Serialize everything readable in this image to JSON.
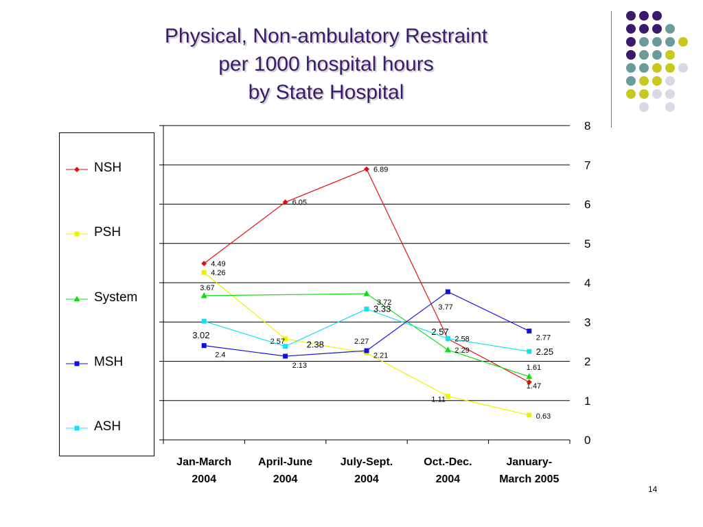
{
  "title_lines": [
    "Physical, Non-ambulatory Restraint",
    "per 1000 hospital hours",
    "by State Hospital"
  ],
  "page_number": "14",
  "colors": {
    "title": "#3b1a6b",
    "dot_purple": "#3b1a6b",
    "dot_teal": "#6b9c9c",
    "dot_yellow": "#c8c820",
    "dot_lavender": "#d8d8e8"
  },
  "decor_dots": [
    [
      "purple",
      "purple",
      "purple",
      null,
      null
    ],
    [
      "purple",
      "purple",
      "purple",
      "teal",
      null
    ],
    [
      "purple",
      "teal",
      "teal",
      "teal",
      "yellow"
    ],
    [
      "purple",
      "teal",
      "teal",
      "yellow",
      null
    ],
    [
      "teal",
      "teal",
      "yellow",
      "yellow",
      "lavender"
    ],
    [
      "teal",
      "yellow",
      "yellow",
      "lavender",
      null
    ],
    [
      "yellow",
      "yellow",
      "lavender",
      "lavender",
      null
    ],
    [
      null,
      "lavender",
      null,
      "lavender",
      null
    ]
  ],
  "chart_data": {
    "type": "line",
    "categories": [
      "Jan-March 2004",
      "April-June 2004",
      "July-Sept. 2004",
      "Oct.-Dec. 2004",
      "January-March 2005"
    ],
    "category_lines": [
      [
        "Jan-March",
        "2004"
      ],
      [
        "April-June",
        "2004"
      ],
      [
        "July-Sept.",
        "2004"
      ],
      [
        "Oct.-Dec.",
        "2004"
      ],
      [
        "January-",
        "March 2005"
      ]
    ],
    "ylim": [
      0,
      8
    ],
    "yticks": [
      "0",
      "1",
      "2",
      "3",
      "4",
      "5",
      "6",
      "7",
      "8"
    ],
    "y_axis_side": "right",
    "grid": true,
    "legend_position": "left",
    "series": [
      {
        "name": "NSH",
        "color": "#dd1111",
        "marker": "diamond",
        "values": [
          4.49,
          6.05,
          6.89,
          2.57,
          1.47
        ],
        "labels": [
          "4.49",
          "6.05",
          "6.89",
          "2.57",
          "1.47"
        ],
        "label_size": [
          11,
          11,
          11,
          13,
          11
        ]
      },
      {
        "name": "PSH",
        "color": "#f0f000",
        "marker": "square",
        "values": [
          4.26,
          2.57,
          2.21,
          1.11,
          0.63
        ],
        "labels": [
          "4.26",
          "2.57",
          "2.21",
          "1.11",
          "0.63"
        ],
        "label_size": [
          11,
          11,
          11,
          11,
          11
        ]
      },
      {
        "name": "System",
        "color": "#11dd11",
        "marker": "triangle",
        "values": [
          3.67,
          null,
          3.72,
          2.29,
          1.61
        ],
        "labels": [
          "3.67",
          "",
          "3.72",
          "2.29",
          "1.61"
        ],
        "label_size": [
          11,
          11,
          11,
          11,
          11
        ]
      },
      {
        "name": "MSH",
        "color": "#1111dd",
        "marker": "square",
        "values": [
          2.4,
          2.13,
          2.27,
          3.77,
          2.77
        ],
        "labels": [
          "2.4",
          "2.13",
          "2.27",
          "3.77",
          "2.77"
        ],
        "label_size": [
          11,
          11,
          11,
          11,
          11
        ]
      },
      {
        "name": "ASH",
        "color": "#11e0f0",
        "marker": "square",
        "values": [
          3.02,
          2.38,
          3.33,
          2.58,
          2.25
        ],
        "labels": [
          "3.02",
          "2.38",
          "3.33",
          "2.58",
          "2.25"
        ],
        "label_size": [
          13,
          13,
          13,
          11,
          13
        ]
      }
    ]
  }
}
